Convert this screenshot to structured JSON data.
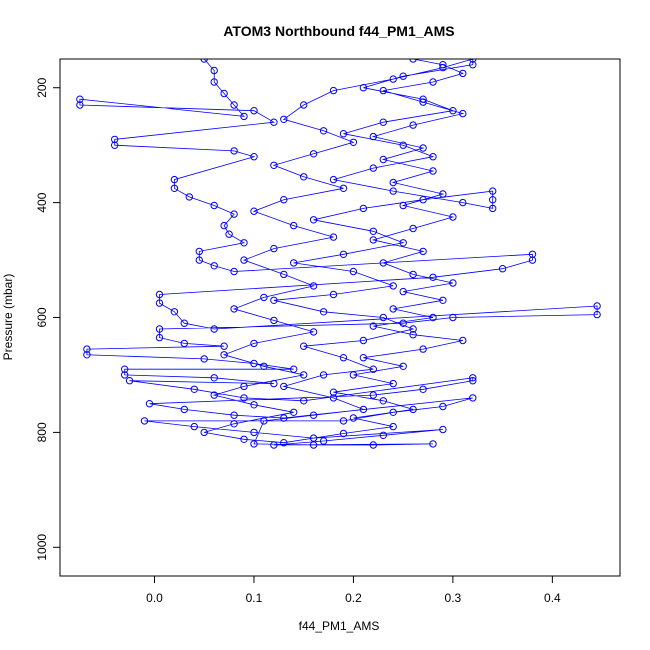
{
  "chart_data": {
    "type": "scatter",
    "title": "ATOM3 Northbound f44_PM1_AMS",
    "xlabel": "f44_PM1_AMS",
    "ylabel": "Pressure (mbar)",
    "xlim": [
      -0.095,
      0.468
    ],
    "ylim": [
      1050,
      150
    ],
    "y_reversed": true,
    "x_ticks": [
      {
        "value": 0.0,
        "label": "0.0"
      },
      {
        "value": 0.1,
        "label": "0.1"
      },
      {
        "value": 0.2,
        "label": "0.2"
      },
      {
        "value": 0.3,
        "label": "0.3"
      },
      {
        "value": 0.4,
        "label": "0.4"
      }
    ],
    "y_ticks": [
      {
        "value": 200,
        "label": "200"
      },
      {
        "value": 400,
        "label": "400"
      },
      {
        "value": 600,
        "label": "600"
      },
      {
        "value": 800,
        "label": "800"
      },
      {
        "value": 1000,
        "label": "1000"
      }
    ],
    "grid": false,
    "legend": "none",
    "marker": "open-circle",
    "connected": true,
    "color": "#0000ff",
    "series": [
      {
        "points": [
          [
            0.05,
            150
          ],
          [
            0.06,
            170
          ],
          [
            0.06,
            190
          ],
          [
            0.07,
            210
          ],
          [
            0.08,
            230
          ],
          [
            0.09,
            250
          ],
          [
            -0.075,
            220
          ],
          [
            -0.075,
            230
          ],
          [
            0.1,
            240
          ],
          [
            0.12,
            260
          ],
          [
            -0.04,
            290
          ],
          [
            -0.04,
            300
          ],
          [
            0.08,
            310
          ],
          [
            0.1,
            320
          ],
          [
            0.02,
            360
          ],
          [
            0.02,
            375
          ],
          [
            0.035,
            390
          ],
          [
            0.06,
            405
          ],
          [
            0.08,
            420
          ],
          [
            0.07,
            440
          ],
          [
            0.075,
            455
          ],
          [
            0.09,
            470
          ],
          [
            0.045,
            485
          ],
          [
            0.045,
            500
          ],
          [
            0.06,
            510
          ],
          [
            0.08,
            520
          ],
          [
            0.38,
            490
          ],
          [
            0.38,
            500
          ],
          [
            0.35,
            515
          ],
          [
            0.28,
            530
          ],
          [
            0.005,
            560
          ],
          [
            0.005,
            575
          ],
          [
            0.02,
            590
          ],
          [
            0.03,
            610
          ],
          [
            0.06,
            620
          ],
          [
            0.445,
            580
          ],
          [
            0.445,
            595
          ],
          [
            0.3,
            600
          ],
          [
            0.25,
            610
          ],
          [
            0.005,
            620
          ],
          [
            0.005,
            635
          ],
          [
            0.03,
            645
          ],
          [
            0.07,
            650
          ],
          [
            -0.068,
            655
          ],
          [
            -0.068,
            665
          ],
          [
            0.05,
            672
          ],
          [
            0.1,
            680
          ],
          [
            0.14,
            690
          ],
          [
            -0.03,
            690
          ],
          [
            -0.03,
            700
          ],
          [
            0.06,
            705
          ],
          [
            0.12,
            715
          ],
          [
            -0.025,
            710
          ],
          [
            0.04,
            725
          ],
          [
            0.09,
            740
          ],
          [
            0.15,
            745
          ],
          [
            0.32,
            705
          ],
          [
            0.32,
            710
          ],
          [
            0.27,
            725
          ],
          [
            0.22,
            735
          ],
          [
            -0.005,
            750
          ],
          [
            0.03,
            760
          ],
          [
            0.08,
            770
          ],
          [
            0.13,
            775
          ],
          [
            0.32,
            740
          ],
          [
            0.29,
            755
          ],
          [
            0.24,
            765
          ],
          [
            0.19,
            780
          ],
          [
            -0.01,
            780
          ],
          [
            0.04,
            790
          ],
          [
            0.1,
            800
          ],
          [
            0.16,
            810
          ],
          [
            0.29,
            795
          ],
          [
            0.23,
            805
          ],
          [
            0.17,
            815
          ],
          [
            0.12,
            822
          ],
          [
            0.28,
            820
          ],
          [
            0.22,
            822
          ],
          [
            0.16,
            822
          ],
          [
            0.1,
            820
          ],
          [
            0.11,
            780
          ],
          [
            0.16,
            770
          ],
          [
            0.21,
            760
          ],
          [
            0.18,
            740
          ],
          [
            0.13,
            720
          ],
          [
            0.17,
            700
          ],
          [
            0.22,
            690
          ],
          [
            0.19,
            670
          ],
          [
            0.15,
            650
          ],
          [
            0.21,
            640
          ],
          [
            0.26,
            620
          ],
          [
            0.23,
            600
          ],
          [
            0.17,
            590
          ],
          [
            0.12,
            570
          ],
          [
            0.18,
            560
          ],
          [
            0.24,
            545
          ],
          [
            0.2,
            520
          ],
          [
            0.14,
            505
          ],
          [
            0.19,
            490
          ],
          [
            0.25,
            470
          ],
          [
            0.22,
            450
          ],
          [
            0.16,
            430
          ],
          [
            0.21,
            410
          ],
          [
            0.27,
            395
          ],
          [
            0.34,
            380
          ],
          [
            0.34,
            395
          ],
          [
            0.34,
            410
          ],
          [
            0.31,
            400
          ],
          [
            0.24,
            380
          ],
          [
            0.18,
            360
          ],
          [
            0.22,
            340
          ],
          [
            0.28,
            320
          ],
          [
            0.25,
            300
          ],
          [
            0.19,
            280
          ],
          [
            0.23,
            260
          ],
          [
            0.3,
            240
          ],
          [
            0.27,
            220
          ],
          [
            0.21,
            200
          ],
          [
            0.25,
            180
          ],
          [
            0.32,
            160
          ],
          [
            0.32,
            150
          ],
          [
            0.29,
            165
          ],
          [
            0.24,
            185
          ],
          [
            0.18,
            205
          ],
          [
            0.15,
            230
          ],
          [
            0.13,
            255
          ],
          [
            0.17,
            275
          ],
          [
            0.2,
            295
          ],
          [
            0.16,
            315
          ],
          [
            0.12,
            335
          ],
          [
            0.15,
            355
          ],
          [
            0.19,
            375
          ],
          [
            0.13,
            395
          ],
          [
            0.1,
            415
          ],
          [
            0.14,
            440
          ],
          [
            0.18,
            460
          ],
          [
            0.12,
            480
          ],
          [
            0.09,
            500
          ],
          [
            0.13,
            525
          ],
          [
            0.16,
            545
          ],
          [
            0.11,
            565
          ],
          [
            0.08,
            585
          ],
          [
            0.12,
            605
          ],
          [
            0.16,
            625
          ],
          [
            0.1,
            645
          ],
          [
            0.07,
            665
          ],
          [
            0.11,
            685
          ],
          [
            0.15,
            700
          ],
          [
            0.09,
            720
          ],
          [
            0.06,
            735
          ],
          [
            0.1,
            752
          ],
          [
            0.14,
            765
          ],
          [
            0.08,
            785
          ],
          [
            0.05,
            800
          ],
          [
            0.09,
            812
          ],
          [
            0.13,
            818
          ],
          [
            0.19,
            802
          ],
          [
            0.24,
            790
          ],
          [
            0.2,
            775
          ],
          [
            0.26,
            760
          ],
          [
            0.23,
            745
          ],
          [
            0.18,
            730
          ],
          [
            0.24,
            715
          ],
          [
            0.2,
            700
          ],
          [
            0.25,
            685
          ],
          [
            0.21,
            670
          ],
          [
            0.27,
            655
          ],
          [
            0.31,
            640
          ],
          [
            0.26,
            630
          ],
          [
            0.22,
            615
          ],
          [
            0.28,
            600
          ],
          [
            0.24,
            585
          ],
          [
            0.29,
            570
          ],
          [
            0.25,
            555
          ],
          [
            0.3,
            540
          ],
          [
            0.26,
            525
          ],
          [
            0.23,
            505
          ],
          [
            0.27,
            485
          ],
          [
            0.22,
            465
          ],
          [
            0.26,
            445
          ],
          [
            0.3,
            425
          ],
          [
            0.25,
            405
          ],
          [
            0.29,
            385
          ],
          [
            0.24,
            365
          ],
          [
            0.28,
            345
          ],
          [
            0.23,
            325
          ],
          [
            0.27,
            305
          ],
          [
            0.22,
            285
          ],
          [
            0.26,
            265
          ],
          [
            0.31,
            245
          ],
          [
            0.27,
            225
          ],
          [
            0.23,
            205
          ],
          [
            0.28,
            190
          ],
          [
            0.31,
            175
          ],
          [
            0.29,
            160
          ],
          [
            0.26,
            150
          ]
        ]
      }
    ]
  }
}
